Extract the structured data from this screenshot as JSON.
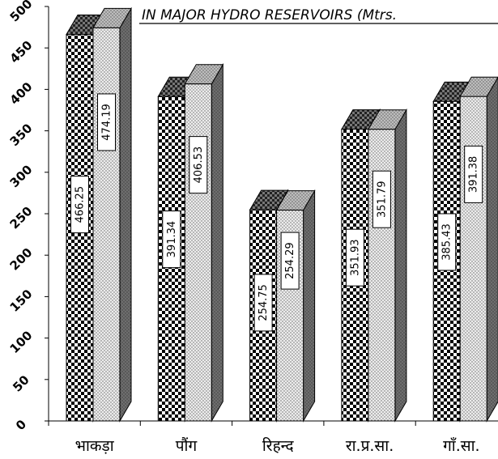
{
  "chart_data": {
    "type": "bar",
    "title": "IN MAJOR HYDRO RESERVOIRS (Mtrs.",
    "categories": [
      "भाकड़ा",
      "पौंग",
      "रिहन्द",
      "रा.प्र.सा.",
      "गाँ.सा."
    ],
    "series": [
      {
        "values": [
          466.25,
          391.34,
          254.75,
          351.93,
          385.43
        ],
        "pattern": "checkerboard"
      },
      {
        "values": [
          474.19,
          406.53,
          254.29,
          351.79,
          391.38
        ],
        "pattern": "dotted"
      }
    ],
    "ylim": [
      0,
      500
    ],
    "yticks": [
      0,
      50,
      100,
      150,
      200,
      250,
      300,
      350,
      400,
      450,
      500
    ],
    "three_d": true,
    "grid": false
  }
}
